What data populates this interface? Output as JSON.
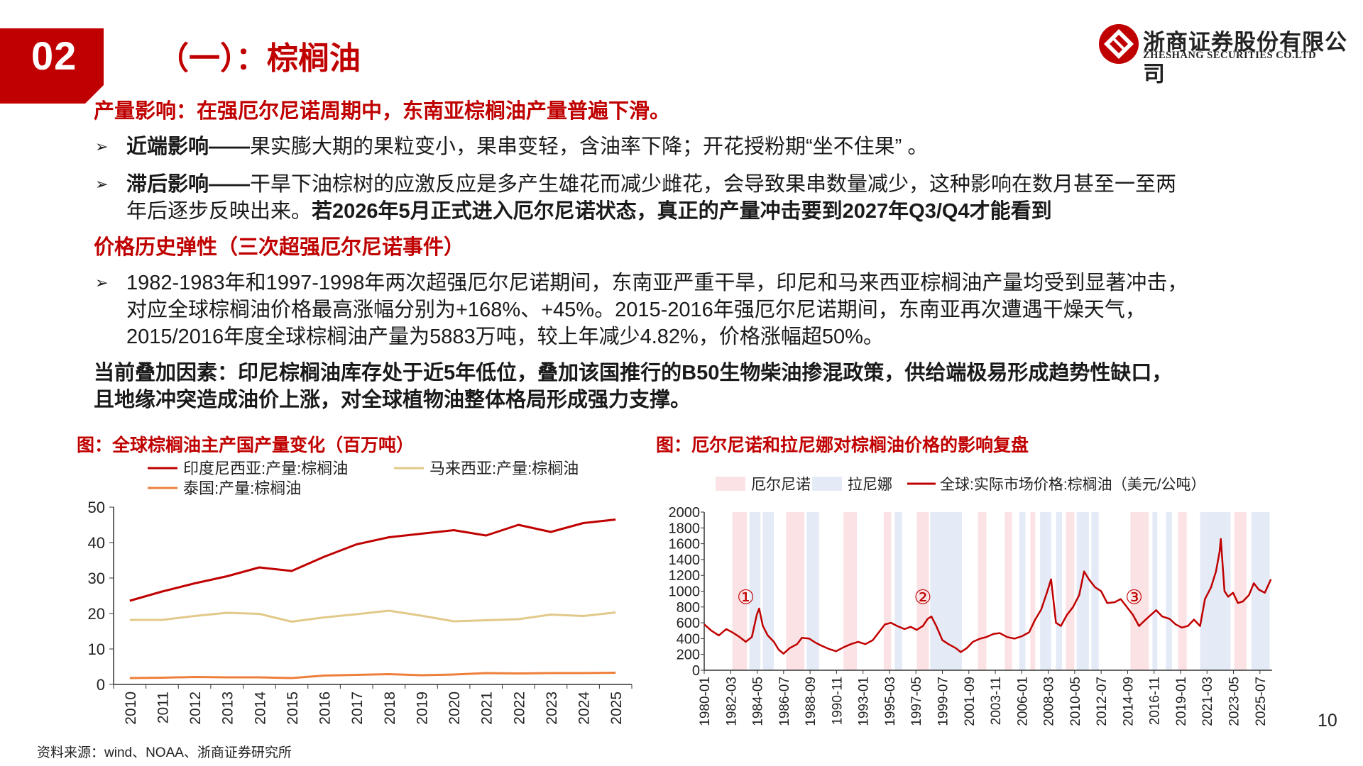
{
  "header": {
    "section_number": "02",
    "title": "（一）：棕榈油",
    "logo_cn": "浙商证券股份有限公司",
    "logo_en": "ZHESHANG SECURITIES CO.LTD"
  },
  "body": {
    "h1": "产量影响：在强厄尔尼诺周期中，东南亚棕榈油产量普遍下滑。",
    "b1_label": "近端影响——",
    "b1_text": "果实膨大期的果粒变小，果串变轻，含油率下降；开花授粉期“坐不住果” 。",
    "b2_label": "滞后影响——",
    "b2_text1": "干旱下油棕树的应激反应是多产生雄花而减少雌花，会导致果串数量减少，这种影响在数月甚至一至两",
    "b2_text2": "年后逐步反映出来。",
    "b2_bold": "若2026年5月正式进入厄尔尼诺状态，真正的产量冲击要到2027年Q3/Q4才能看到",
    "h2": "价格历史弹性（三次超强厄尔尼诺事件）",
    "b3_line1": "1982-1983年和1997-1998年两次超强厄尔尼诺期间，东南亚严重干旱，印尼和马来西亚棕榈油产量均受到显著冲击，",
    "b3_line2": "对应全球棕榈油价格最高涨幅分别为+168%、+45%。2015-2016年强厄尔尼诺期间，东南亚再次遭遇干燥天气，",
    "b3_line3": "2015/2016年度全球棕榈油产量为5883万吨，较上年减少4.82%，价格涨幅超50%。",
    "h3_line1": "当前叠加因素：印尼棕榈油库存处于近5年低位，叠加该国推行的B50生物柴油掺混政策，供给端极易形成趋势性缺口，",
    "h3_line2": "且地缘冲突造成油价上涨，对全球植物油整体格局形成强力支撑。"
  },
  "footer": {
    "source": "资料来源：wind、NOAA、浙商证券研究所",
    "page": "10"
  },
  "colors": {
    "brand_red": "#c00000",
    "indonesia": "#c00000",
    "malaysia": "#e2c98a",
    "thailand": "#ee7f3b",
    "price": "#c00000",
    "el_nino_band": "#fbe3e5",
    "la_nina_band": "#e4ebf7"
  },
  "chart_data": [
    {
      "type": "line",
      "title": "图：全球棕榈油主产国产量变化（百万吨）",
      "categories": [
        "2010",
        "2011",
        "2012",
        "2013",
        "2014",
        "2015",
        "2016",
        "2017",
        "2018",
        "2019",
        "2020",
        "2021",
        "2022",
        "2023",
        "2024",
        "2025"
      ],
      "series": [
        {
          "name": "印度尼西亚:产量:棕榈油",
          "values": [
            23.6,
            26.2,
            28.5,
            30.5,
            33.0,
            32.0,
            36.0,
            39.5,
            41.5,
            42.5,
            43.5,
            42.0,
            45.0,
            43.0,
            45.5,
            46.5
          ]
        },
        {
          "name": "马来西亚:产量:棕榈油",
          "values": [
            18.2,
            18.2,
            19.3,
            20.2,
            19.9,
            17.7,
            18.9,
            19.8,
            20.8,
            19.4,
            17.8,
            18.1,
            18.4,
            19.7,
            19.3,
            20.3
          ]
        },
        {
          "name": "泰国:产量:棕榈油",
          "values": [
            1.8,
            1.9,
            2.1,
            2.0,
            2.0,
            1.8,
            2.5,
            2.7,
            2.9,
            2.6,
            2.8,
            3.2,
            3.1,
            3.2,
            3.2,
            3.3
          ]
        }
      ],
      "ylim": [
        0,
        50
      ],
      "yticks": [
        0,
        10,
        20,
        30,
        40,
        50
      ],
      "legend": "top"
    },
    {
      "type": "line",
      "title": "图：厄尔尼诺和拉尼娜对棕榈油价格的影响复盘",
      "series_name": "全球:实际市场价格:棕榈油（美元/公吨）",
      "band_legend": [
        "厄尔尼诺",
        "拉尼娜"
      ],
      "annotations": [
        "①",
        "②",
        "③"
      ],
      "annotation_years": [
        1983.4,
        1997.9,
        2015.2
      ],
      "x_tick_labels": [
        "1980-01",
        "1982-03",
        "1984-05",
        "1986-07",
        "1988-09",
        "1990-11",
        "1993-01",
        "1995-03",
        "1997-05",
        "1999-07",
        "2001-09",
        "2003-11",
        "2006-01",
        "2008-03",
        "2010-05",
        "2012-07",
        "2014-09",
        "2016-11",
        "2019-01",
        "2021-03",
        "2023-05",
        "2025-07"
      ],
      "yticks": [
        0,
        200,
        400,
        600,
        800,
        1000,
        1200,
        1400,
        1600,
        1800,
        2000
      ],
      "ylim": [
        0,
        2000
      ],
      "xlim": [
        1980.0,
        2026.5
      ],
      "points": [
        [
          1980.0,
          580
        ],
        [
          1980.6,
          500
        ],
        [
          1981.2,
          440
        ],
        [
          1981.8,
          520
        ],
        [
          1982.3,
          480
        ],
        [
          1982.9,
          420
        ],
        [
          1983.4,
          360
        ],
        [
          1983.9,
          420
        ],
        [
          1984.3,
          700
        ],
        [
          1984.5,
          780
        ],
        [
          1984.8,
          560
        ],
        [
          1985.2,
          440
        ],
        [
          1985.7,
          360
        ],
        [
          1986.1,
          260
        ],
        [
          1986.5,
          210
        ],
        [
          1987.0,
          280
        ],
        [
          1987.6,
          330
        ],
        [
          1988.0,
          410
        ],
        [
          1988.6,
          400
        ],
        [
          1989.1,
          350
        ],
        [
          1989.6,
          310
        ],
        [
          1990.2,
          270
        ],
        [
          1990.8,
          240
        ],
        [
          1991.4,
          290
        ],
        [
          1992.0,
          330
        ],
        [
          1992.6,
          360
        ],
        [
          1993.2,
          330
        ],
        [
          1993.8,
          380
        ],
        [
          1994.3,
          480
        ],
        [
          1994.8,
          580
        ],
        [
          1995.3,
          600
        ],
        [
          1995.8,
          560
        ],
        [
          1996.4,
          520
        ],
        [
          1996.9,
          550
        ],
        [
          1997.4,
          510
        ],
        [
          1997.9,
          560
        ],
        [
          1998.3,
          650
        ],
        [
          1998.6,
          680
        ],
        [
          1999.0,
          560
        ],
        [
          1999.5,
          380
        ],
        [
          2000.0,
          330
        ],
        [
          2000.6,
          280
        ],
        [
          2001.0,
          230
        ],
        [
          2001.5,
          280
        ],
        [
          2002.0,
          360
        ],
        [
          2002.6,
          400
        ],
        [
          2003.1,
          420
        ],
        [
          2003.7,
          460
        ],
        [
          2004.2,
          470
        ],
        [
          2004.8,
          420
        ],
        [
          2005.4,
          400
        ],
        [
          2006.0,
          430
        ],
        [
          2006.6,
          480
        ],
        [
          2007.1,
          640
        ],
        [
          2007.6,
          770
        ],
        [
          2008.1,
          1000
        ],
        [
          2008.4,
          1150
        ],
        [
          2008.8,
          600
        ],
        [
          2009.2,
          560
        ],
        [
          2009.7,
          700
        ],
        [
          2010.2,
          800
        ],
        [
          2010.7,
          950
        ],
        [
          2011.1,
          1250
        ],
        [
          2011.5,
          1150
        ],
        [
          2012.0,
          1050
        ],
        [
          2012.5,
          1000
        ],
        [
          2013.0,
          850
        ],
        [
          2013.6,
          860
        ],
        [
          2014.1,
          900
        ],
        [
          2014.6,
          800
        ],
        [
          2015.1,
          700
        ],
        [
          2015.6,
          560
        ],
        [
          2016.0,
          620
        ],
        [
          2016.5,
          690
        ],
        [
          2017.0,
          760
        ],
        [
          2017.5,
          680
        ],
        [
          2018.1,
          650
        ],
        [
          2018.6,
          580
        ],
        [
          2019.1,
          540
        ],
        [
          2019.6,
          560
        ],
        [
          2020.1,
          640
        ],
        [
          2020.6,
          560
        ],
        [
          2021.0,
          900
        ],
        [
          2021.5,
          1050
        ],
        [
          2021.9,
          1250
        ],
        [
          2022.2,
          1500
        ],
        [
          2022.3,
          1660
        ],
        [
          2022.6,
          1000
        ],
        [
          2022.9,
          930
        ],
        [
          2023.3,
          980
        ],
        [
          2023.7,
          850
        ],
        [
          2024.1,
          870
        ],
        [
          2024.6,
          950
        ],
        [
          2025.0,
          1100
        ],
        [
          2025.4,
          1020
        ],
        [
          2025.9,
          980
        ],
        [
          2026.4,
          1150
        ]
      ],
      "el_nino_ranges": [
        [
          1982.3,
          1983.5
        ],
        [
          1986.7,
          1988.2
        ],
        [
          1991.4,
          1992.5
        ],
        [
          1994.7,
          1995.3
        ],
        [
          1997.4,
          1998.4
        ],
        [
          2002.4,
          2003.1
        ],
        [
          2004.6,
          2005.2
        ],
        [
          2006.7,
          2007.1
        ],
        [
          2009.6,
          2010.3
        ],
        [
          2014.9,
          2016.4
        ],
        [
          2018.8,
          2019.5
        ],
        [
          2023.4,
          2024.4
        ]
      ],
      "la_nina_ranges": [
        [
          1983.7,
          1984.6
        ],
        [
          1984.8,
          1985.7
        ],
        [
          1988.4,
          1989.4
        ],
        [
          1995.6,
          1996.2
        ],
        [
          1998.5,
          2001.1
        ],
        [
          2005.8,
          2006.3
        ],
        [
          2007.5,
          2008.4
        ],
        [
          2008.8,
          2009.3
        ],
        [
          2010.5,
          2011.5
        ],
        [
          2011.7,
          2012.3
        ],
        [
          2016.7,
          2017.1
        ],
        [
          2017.8,
          2018.3
        ],
        [
          2020.6,
          2023.1
        ],
        [
          2024.8,
          2026.3
        ]
      ]
    }
  ]
}
